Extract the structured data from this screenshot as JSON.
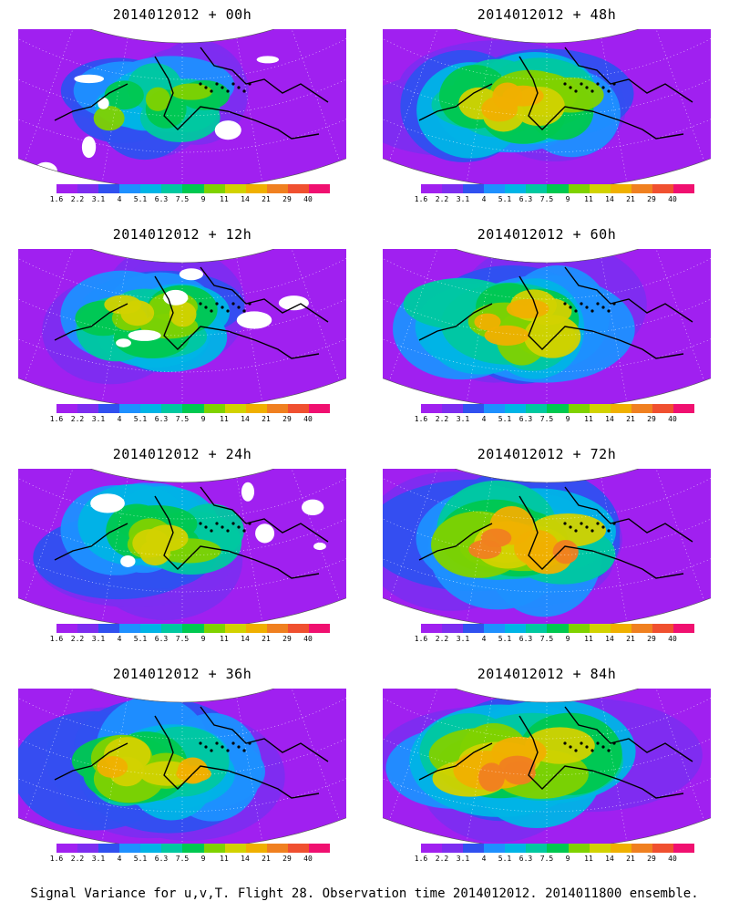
{
  "panels": [
    {
      "title": "2014012012 + 00h",
      "lead": "00h",
      "intensity": 0.35,
      "gaps": true
    },
    {
      "title": "2014012012 + 48h",
      "lead": "48h",
      "intensity": 0.62,
      "gaps": false
    },
    {
      "title": "2014012012 + 12h",
      "lead": "12h",
      "intensity": 0.45,
      "gaps": true
    },
    {
      "title": "2014012012 + 60h",
      "lead": "60h",
      "intensity": 0.68,
      "gaps": false
    },
    {
      "title": "2014012012 + 24h",
      "lead": "24h",
      "intensity": 0.52,
      "gaps": true
    },
    {
      "title": "2014012012 + 72h",
      "lead": "72h",
      "intensity": 0.75,
      "gaps": false
    },
    {
      "title": "2014012012 + 36h",
      "lead": "36h",
      "intensity": 0.58,
      "gaps": false
    },
    {
      "title": "2014012012 + 84h",
      "lead": "84h",
      "intensity": 0.8,
      "gaps": false
    }
  ],
  "colorbar": {
    "labels": [
      "1.6",
      "2.2",
      "3.1",
      "4",
      "5.1",
      "6.3",
      "7.5",
      "9",
      "11",
      "14",
      "21",
      "29",
      "40"
    ],
    "colors": [
      "#a020f0",
      "#7d2df0",
      "#3050f0",
      "#1e90ff",
      "#00b4e6",
      "#00c8a0",
      "#00c850",
      "#7fd200",
      "#d2d200",
      "#f0b000",
      "#f08020",
      "#f05030",
      "#f01070"
    ]
  },
  "footer": "Signal Variance for u,v,T. Flight 28. Observation time 2014012012. 2014011800 ensemble."
}
